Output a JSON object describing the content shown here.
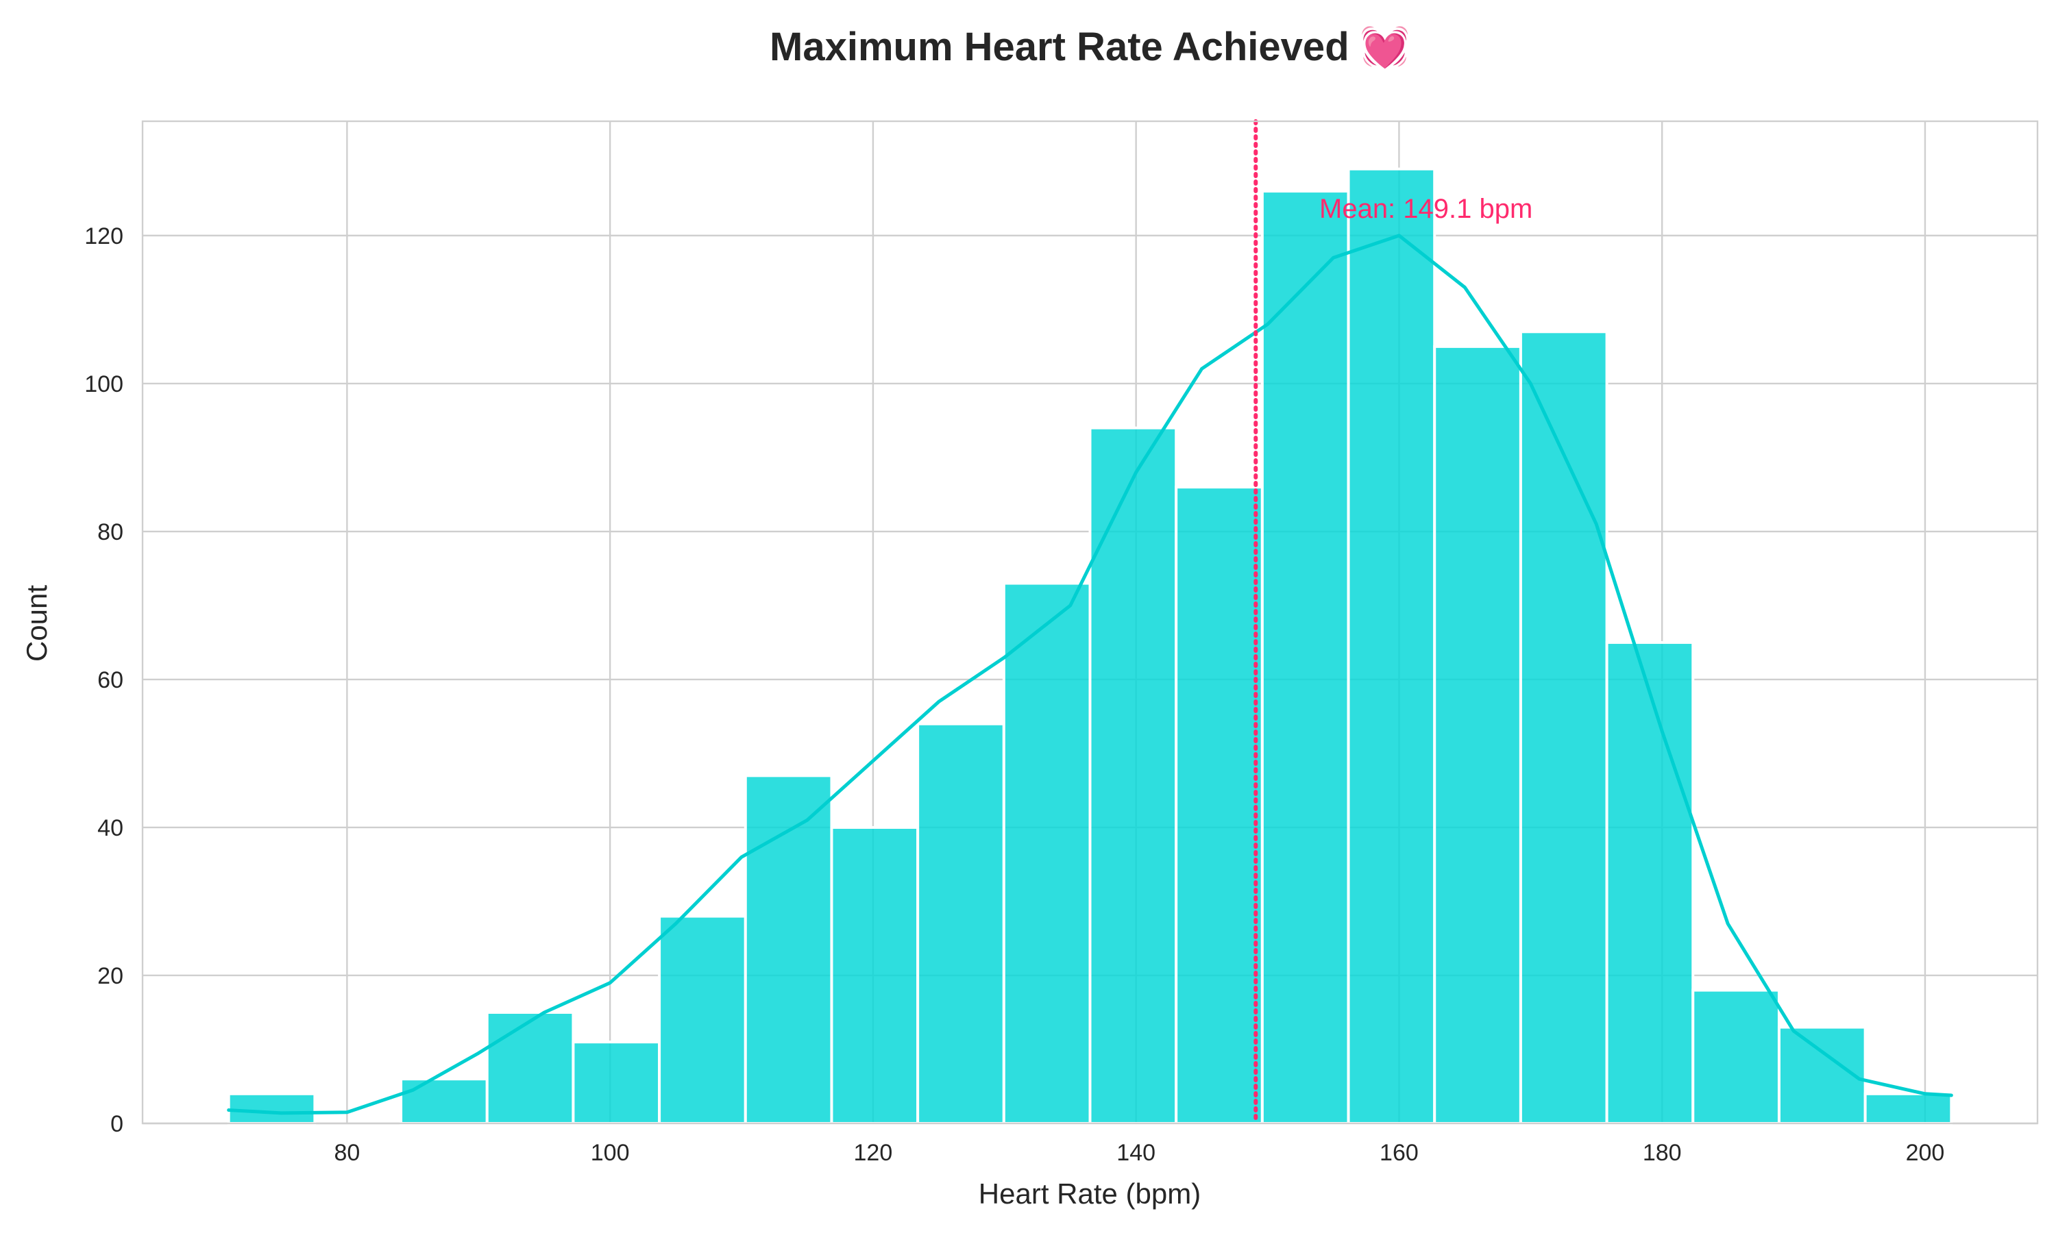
{
  "chart_data": {
    "type": "bar",
    "title": "Maximum Heart Rate Achieved 💓",
    "xlabel": "Heart Rate (bpm)",
    "ylabel": "Count",
    "xlim": [
      64.45,
      208.55
    ],
    "ylim": [
      0,
      135.45
    ],
    "xticks": [
      80,
      100,
      120,
      140,
      160,
      180,
      200
    ],
    "yticks": [
      0,
      20,
      40,
      60,
      80,
      100,
      120
    ],
    "grid": true,
    "bins": [
      {
        "start": 71.0,
        "end": 77.55,
        "count": 4
      },
      {
        "start": 77.55,
        "end": 84.1,
        "count": 0
      },
      {
        "start": 84.1,
        "end": 90.65,
        "count": 6
      },
      {
        "start": 90.65,
        "end": 97.2,
        "count": 15
      },
      {
        "start": 97.2,
        "end": 103.75,
        "count": 11
      },
      {
        "start": 103.75,
        "end": 110.3,
        "count": 28
      },
      {
        "start": 110.3,
        "end": 116.85,
        "count": 47
      },
      {
        "start": 116.85,
        "end": 123.4,
        "count": 40
      },
      {
        "start": 123.4,
        "end": 129.95,
        "count": 54
      },
      {
        "start": 129.95,
        "end": 136.5,
        "count": 73
      },
      {
        "start": 136.5,
        "end": 143.05,
        "count": 94
      },
      {
        "start": 143.05,
        "end": 149.6,
        "count": 86
      },
      {
        "start": 149.6,
        "end": 156.15,
        "count": 126
      },
      {
        "start": 156.15,
        "end": 162.7,
        "count": 129
      },
      {
        "start": 162.7,
        "end": 169.25,
        "count": 105
      },
      {
        "start": 169.25,
        "end": 175.8,
        "count": 107
      },
      {
        "start": 175.8,
        "end": 182.35,
        "count": 65
      },
      {
        "start": 182.35,
        "end": 188.9,
        "count": 18
      },
      {
        "start": 188.9,
        "end": 195.45,
        "count": 13
      },
      {
        "start": 195.45,
        "end": 202.0,
        "count": 4
      }
    ],
    "kde": {
      "x": [
        71,
        75,
        80,
        85,
        90,
        95,
        100,
        105,
        110,
        115,
        120,
        125,
        130,
        135,
        140,
        145,
        150,
        155,
        160,
        165,
        170,
        175,
        180,
        185,
        190,
        195,
        200,
        202
      ],
      "y": [
        1.8,
        1.4,
        1.5,
        4.5,
        9.5,
        15.0,
        19.0,
        27.0,
        36.0,
        41.0,
        49.0,
        57.0,
        63.0,
        70.0,
        88.0,
        102.0,
        108.0,
        117.0,
        120.0,
        113.0,
        100.0,
        81.0,
        53.0,
        27.0,
        12.5,
        6.0,
        4.0,
        3.8
      ]
    },
    "mean_line": {
      "value": 149.1,
      "label": "Mean: 149.1 bpm"
    }
  },
  "colors": {
    "bar_fill": "#00d7d7",
    "bar_edge": "#ffffff",
    "kde_line": "#00cfd0",
    "mean_line": "#ff2a6d",
    "grid": "#cfcfcf",
    "axis": "#cfcfcf",
    "text": "#262626"
  }
}
